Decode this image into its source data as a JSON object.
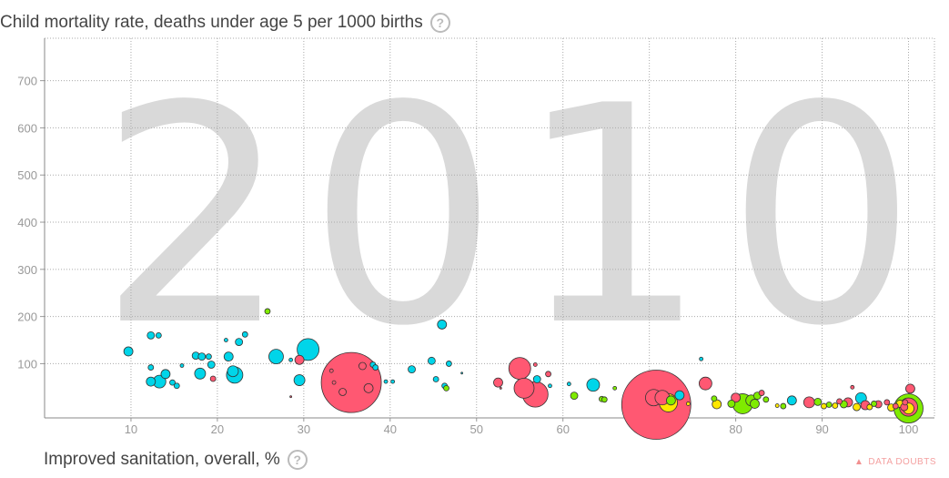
{
  "y_axis_title": "Child mortality rate, deaths under age 5 per 1000 births",
  "x_axis_title": "Improved sanitation, overall, %",
  "help_glyph": "?",
  "data_doubts_label": "DATA DOUBTS",
  "colors": {
    "asia": "#ff5872",
    "africa": "#00d5e9",
    "americas": "#7feb00",
    "europe": "#ffe700"
  },
  "chart_data": {
    "type": "scatter",
    "year": "2010",
    "xlabel": "Improved sanitation, overall, %",
    "ylabel": "Child mortality rate, deaths under age 5 per 1000 births",
    "xlim": [
      0,
      103
    ],
    "ylim": [
      -15,
      790
    ],
    "xticks": [
      10,
      20,
      30,
      40,
      50,
      60,
      70,
      80,
      90,
      100
    ],
    "yticks": [
      100,
      200,
      300,
      400,
      500,
      600,
      700
    ],
    "grid": true,
    "points": [
      {
        "x": 9.7,
        "y": 126,
        "r": 5,
        "c": "africa"
      },
      {
        "x": 12.3,
        "y": 160,
        "r": 4,
        "c": "africa"
      },
      {
        "x": 13.2,
        "y": 160,
        "r": 3,
        "c": "africa"
      },
      {
        "x": 12.3,
        "y": 92,
        "r": 3,
        "c": "africa"
      },
      {
        "x": 12.3,
        "y": 62,
        "r": 5,
        "c": "africa"
      },
      {
        "x": 13.3,
        "y": 62,
        "r": 7,
        "c": "africa"
      },
      {
        "x": 14.0,
        "y": 78,
        "r": 5,
        "c": "africa"
      },
      {
        "x": 14.8,
        "y": 60,
        "r": 3,
        "c": "africa"
      },
      {
        "x": 15.3,
        "y": 53,
        "r": 3,
        "c": "africa"
      },
      {
        "x": 15.9,
        "y": 96,
        "r": 2,
        "c": "africa"
      },
      {
        "x": 17.5,
        "y": 117,
        "r": 4,
        "c": "africa"
      },
      {
        "x": 18.2,
        "y": 115,
        "r": 4,
        "c": "africa"
      },
      {
        "x": 18.0,
        "y": 79,
        "r": 6,
        "c": "africa"
      },
      {
        "x": 19.0,
        "y": 115,
        "r": 3,
        "c": "africa"
      },
      {
        "x": 19.3,
        "y": 98,
        "r": 4,
        "c": "africa"
      },
      {
        "x": 19.5,
        "y": 68,
        "r": 3,
        "c": "asia"
      },
      {
        "x": 21.0,
        "y": 150,
        "r": 2,
        "c": "africa"
      },
      {
        "x": 21.3,
        "y": 115,
        "r": 5,
        "c": "africa"
      },
      {
        "x": 21.8,
        "y": 84,
        "r": 6,
        "c": "africa"
      },
      {
        "x": 22.0,
        "y": 76,
        "r": 9,
        "c": "africa"
      },
      {
        "x": 23.2,
        "y": 162,
        "r": 3,
        "c": "africa"
      },
      {
        "x": 22.5,
        "y": 146,
        "r": 4,
        "c": "africa"
      },
      {
        "x": 25.8,
        "y": 211,
        "r": 3,
        "c": "americas"
      },
      {
        "x": 26.8,
        "y": 115,
        "r": 8,
        "c": "africa"
      },
      {
        "x": 28.5,
        "y": 108,
        "r": 2,
        "c": "africa"
      },
      {
        "x": 28.5,
        "y": 30,
        "r": 1,
        "c": "asia"
      },
      {
        "x": 29.5,
        "y": 108,
        "r": 5,
        "c": "asia"
      },
      {
        "x": 29.5,
        "y": 65,
        "r": 6,
        "c": "africa"
      },
      {
        "x": 30.5,
        "y": 130,
        "r": 12,
        "c": "africa"
      },
      {
        "x": 35.5,
        "y": 60,
        "r": 33,
        "c": "asia"
      },
      {
        "x": 33.2,
        "y": 85,
        "r": 2,
        "c": "asia"
      },
      {
        "x": 33.5,
        "y": 60,
        "r": 2,
        "c": "asia"
      },
      {
        "x": 34.5,
        "y": 40,
        "r": 4,
        "c": "asia"
      },
      {
        "x": 36.8,
        "y": 95,
        "r": 4,
        "c": "asia"
      },
      {
        "x": 37.5,
        "y": 48,
        "r": 5,
        "c": "asia"
      },
      {
        "x": 38.0,
        "y": 98,
        "r": 3,
        "c": "africa"
      },
      {
        "x": 38.3,
        "y": 92,
        "r": 3,
        "c": "africa"
      },
      {
        "x": 39.5,
        "y": 62,
        "r": 2,
        "c": "africa"
      },
      {
        "x": 42.5,
        "y": 88,
        "r": 4,
        "c": "africa"
      },
      {
        "x": 40.3,
        "y": 62,
        "r": 2,
        "c": "africa"
      },
      {
        "x": 44.8,
        "y": 106,
        "r": 4,
        "c": "africa"
      },
      {
        "x": 45.3,
        "y": 67,
        "r": 3,
        "c": "africa"
      },
      {
        "x": 46.0,
        "y": 183,
        "r": 5,
        "c": "africa"
      },
      {
        "x": 46.3,
        "y": 53,
        "r": 3,
        "c": "africa"
      },
      {
        "x": 46.8,
        "y": 100,
        "r": 3,
        "c": "africa"
      },
      {
        "x": 46.5,
        "y": 48,
        "r": 3,
        "c": "americas"
      },
      {
        "x": 48.3,
        "y": 80,
        "r": 1,
        "c": "africa"
      },
      {
        "x": 52.5,
        "y": 60,
        "r": 5,
        "c": "asia"
      },
      {
        "x": 52.8,
        "y": 48,
        "r": 1,
        "c": "asia"
      },
      {
        "x": 55.0,
        "y": 90,
        "r": 12,
        "c": "asia"
      },
      {
        "x": 55.5,
        "y": 48,
        "r": 11,
        "c": "asia"
      },
      {
        "x": 56.8,
        "y": 35,
        "r": 14,
        "c": "asia"
      },
      {
        "x": 56.8,
        "y": 98,
        "r": 2,
        "c": "asia"
      },
      {
        "x": 57.0,
        "y": 67,
        "r": 4,
        "c": "africa"
      },
      {
        "x": 58.3,
        "y": 78,
        "r": 3,
        "c": "asia"
      },
      {
        "x": 58.5,
        "y": 53,
        "r": 2,
        "c": "africa"
      },
      {
        "x": 60.7,
        "y": 57,
        "r": 2,
        "c": "africa"
      },
      {
        "x": 61.3,
        "y": 32,
        "r": 4,
        "c": "americas"
      },
      {
        "x": 63.5,
        "y": 55,
        "r": 7,
        "c": "africa"
      },
      {
        "x": 64.5,
        "y": 25,
        "r": 3,
        "c": "americas"
      },
      {
        "x": 64.8,
        "y": 24,
        "r": 3,
        "c": "americas"
      },
      {
        "x": 66.0,
        "y": 48,
        "r": 2,
        "c": "americas"
      },
      {
        "x": 70.8,
        "y": 13,
        "r": 38,
        "c": "asia"
      },
      {
        "x": 70.5,
        "y": 28,
        "r": 9,
        "c": "asia"
      },
      {
        "x": 71.5,
        "y": 28,
        "r": 8,
        "c": "asia"
      },
      {
        "x": 72.2,
        "y": 17,
        "r": 10,
        "c": "europe"
      },
      {
        "x": 72.5,
        "y": 22,
        "r": 5,
        "c": "americas"
      },
      {
        "x": 73.5,
        "y": 33,
        "r": 5,
        "c": "africa"
      },
      {
        "x": 74.5,
        "y": 15,
        "r": 2,
        "c": "europe"
      },
      {
        "x": 76.0,
        "y": 110,
        "r": 2,
        "c": "africa"
      },
      {
        "x": 76.5,
        "y": 58,
        "r": 7,
        "c": "asia"
      },
      {
        "x": 77.5,
        "y": 26,
        "r": 3,
        "c": "americas"
      },
      {
        "x": 77.8,
        "y": 14,
        "r": 5,
        "c": "europe"
      },
      {
        "x": 79.5,
        "y": 15,
        "r": 4,
        "c": "americas"
      },
      {
        "x": 80.0,
        "y": 28,
        "r": 5,
        "c": "asia"
      },
      {
        "x": 80.8,
        "y": 15,
        "r": 11,
        "c": "americas"
      },
      {
        "x": 81.8,
        "y": 22,
        "r": 6,
        "c": "americas"
      },
      {
        "x": 82.2,
        "y": 15,
        "r": 5,
        "c": "americas"
      },
      {
        "x": 82.5,
        "y": 32,
        "r": 4,
        "c": "americas"
      },
      {
        "x": 83.0,
        "y": 38,
        "r": 3,
        "c": "asia"
      },
      {
        "x": 83.5,
        "y": 24,
        "r": 3,
        "c": "americas"
      },
      {
        "x": 84.8,
        "y": 11,
        "r": 2,
        "c": "europe"
      },
      {
        "x": 85.5,
        "y": 10,
        "r": 3,
        "c": "americas"
      },
      {
        "x": 86.5,
        "y": 22,
        "r": 5,
        "c": "africa"
      },
      {
        "x": 88.5,
        "y": 18,
        "r": 6,
        "c": "asia"
      },
      {
        "x": 89.5,
        "y": 19,
        "r": 4,
        "c": "americas"
      },
      {
        "x": 90.2,
        "y": 10,
        "r": 3,
        "c": "europe"
      },
      {
        "x": 90.8,
        "y": 13,
        "r": 3,
        "c": "americas"
      },
      {
        "x": 91.5,
        "y": 11,
        "r": 3,
        "c": "europe"
      },
      {
        "x": 92.0,
        "y": 20,
        "r": 3,
        "c": "asia"
      },
      {
        "x": 92.5,
        "y": 14,
        "r": 4,
        "c": "americas"
      },
      {
        "x": 93.0,
        "y": 18,
        "r": 5,
        "c": "asia"
      },
      {
        "x": 93.5,
        "y": 50,
        "r": 2,
        "c": "asia"
      },
      {
        "x": 94.0,
        "y": 8,
        "r": 4,
        "c": "europe"
      },
      {
        "x": 94.5,
        "y": 27,
        "r": 6,
        "c": "africa"
      },
      {
        "x": 95.0,
        "y": 12,
        "r": 5,
        "c": "asia"
      },
      {
        "x": 95.5,
        "y": 8,
        "r": 3,
        "c": "europe"
      },
      {
        "x": 96.0,
        "y": 15,
        "r": 3,
        "c": "americas"
      },
      {
        "x": 96.5,
        "y": 14,
        "r": 4,
        "c": "asia"
      },
      {
        "x": 97.5,
        "y": 18,
        "r": 3,
        "c": "asia"
      },
      {
        "x": 98.0,
        "y": 7,
        "r": 4,
        "c": "europe"
      },
      {
        "x": 98.5,
        "y": 10,
        "r": 3,
        "c": "asia"
      },
      {
        "x": 99.0,
        "y": 15,
        "r": 4,
        "c": "europe"
      },
      {
        "x": 99.5,
        "y": 8,
        "r": 4,
        "c": "asia"
      },
      {
        "x": 100.0,
        "y": 5,
        "r": 16,
        "c": "americas"
      },
      {
        "x": 100.0,
        "y": 8,
        "r": 10,
        "c": "asia"
      },
      {
        "x": 100.0,
        "y": 5,
        "r": 6,
        "c": "europe"
      },
      {
        "x": 100.2,
        "y": 47,
        "r": 5,
        "c": "asia"
      },
      {
        "x": 99.6,
        "y": 18,
        "r": 3,
        "c": "asia"
      }
    ]
  }
}
